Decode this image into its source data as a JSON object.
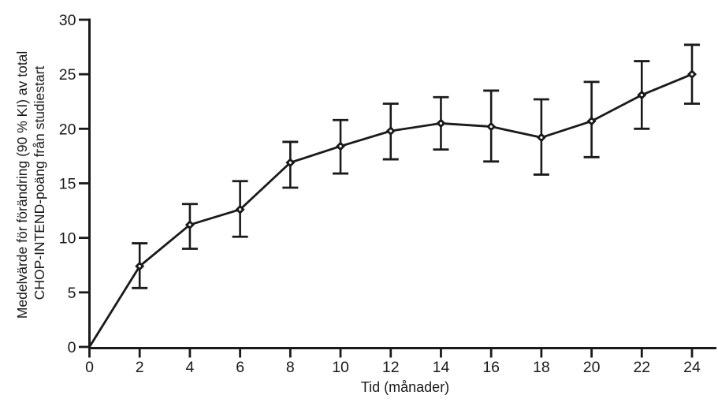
{
  "figure": {
    "background": "#ffffff",
    "ink_color": "#1a1a1a"
  },
  "chart_data": {
    "type": "line",
    "title": "",
    "xlabel": "Tid (månader)",
    "ylabel_lines": [
      "Medelvärde för förändring (90 % KI) av total",
      "CHOP-INTEND-poäng från studiestart"
    ],
    "x": [
      0,
      2,
      4,
      6,
      8,
      10,
      12,
      14,
      16,
      18,
      20,
      22,
      24
    ],
    "series": [
      {
        "name": "Medelvärde för förändring (90 % KI)",
        "values": [
          0,
          7.4,
          11.2,
          12.6,
          16.9,
          18.4,
          19.8,
          20.5,
          20.2,
          19.2,
          20.7,
          23.1,
          25.0
        ],
        "ci90_lower": [
          null,
          5.4,
          9.0,
          10.1,
          14.6,
          15.9,
          17.2,
          18.1,
          17.0,
          15.8,
          17.4,
          20.0,
          22.3
        ],
        "ci90_upper": [
          null,
          9.5,
          13.1,
          15.2,
          18.8,
          20.8,
          22.3,
          22.9,
          23.5,
          22.7,
          24.3,
          26.2,
          27.7
        ]
      }
    ],
    "xlim": [
      0,
      24
    ],
    "ylim": [
      0,
      30
    ],
    "xticks": [
      0,
      2,
      4,
      6,
      8,
      10,
      12,
      14,
      16,
      18,
      20,
      22,
      24
    ],
    "yticks": [
      0,
      5,
      10,
      15,
      20,
      25,
      30
    ],
    "grid": false,
    "legend": "none",
    "marker": "diamond",
    "error_bars": "90% KI",
    "line_color": "#1a1a1a"
  }
}
